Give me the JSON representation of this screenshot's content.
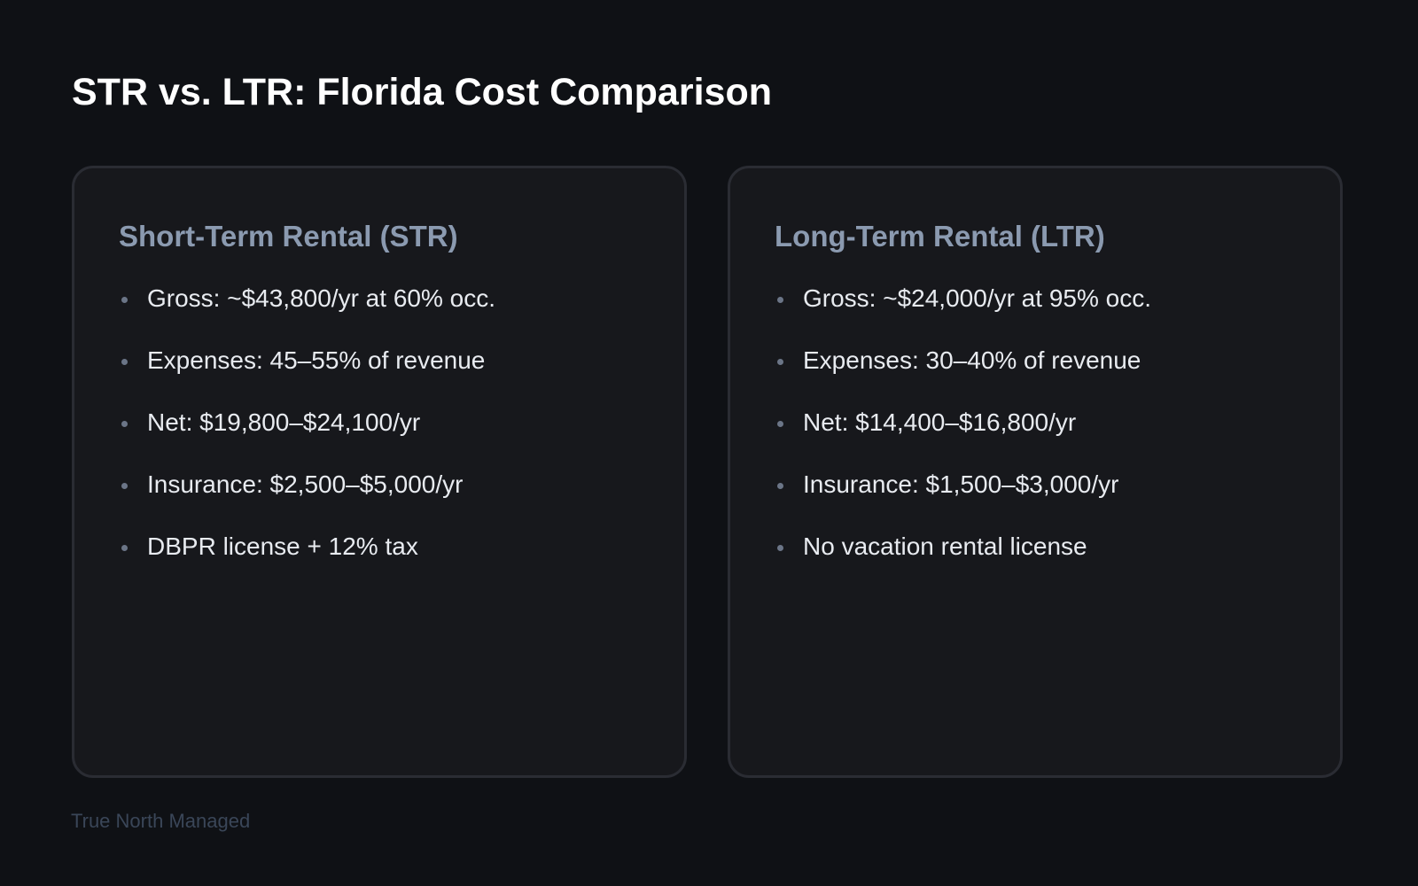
{
  "title": "STR vs. LTR: Florida Cost Comparison",
  "cards": [
    {
      "heading": "Short-Term Rental (STR)",
      "items": [
        "Gross: ~$43,800/yr at 60% occ.",
        "Expenses: 45–55% of revenue",
        "Net: $19,800–$24,100/yr",
        "Insurance: $2,500–$5,000/yr",
        "DBPR license + 12% tax"
      ]
    },
    {
      "heading": "Long-Term Rental (LTR)",
      "items": [
        "Gross: ~$24,000/yr at 95% occ.",
        "Expenses: 30–40% of revenue",
        "Net: $14,400–$16,800/yr",
        "Insurance: $1,500–$3,000/yr",
        "No vacation rental license"
      ]
    }
  ],
  "footer": "True North Managed"
}
